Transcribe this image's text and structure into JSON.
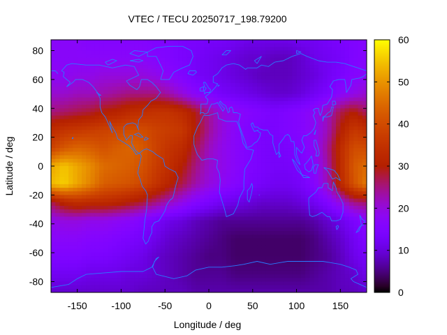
{
  "chart_data": {
    "type": "heatmap",
    "title": "VTEC / TECU 20250717_198.79200",
    "xlabel": "Longitude / deg",
    "ylabel": "Latitude / deg",
    "xlim": [
      -180,
      180
    ],
    "ylim": [
      -87.5,
      87.5
    ],
    "x_ticks": [
      -150,
      -100,
      -50,
      0,
      50,
      100,
      150
    ],
    "y_ticks": [
      -80,
      -60,
      -40,
      -20,
      0,
      20,
      40,
      60,
      80
    ],
    "colorbar": {
      "min": 0,
      "max": 60,
      "ticks": [
        0,
        10,
        20,
        30,
        40,
        50,
        60
      ],
      "colormap": "gnuplot-hot (black-purple-orange-yellow)"
    },
    "grid_lons": [
      -180,
      -165,
      -150,
      -135,
      -120,
      -105,
      -90,
      -75,
      -60,
      -45,
      -30,
      -15,
      0,
      15,
      30,
      45,
      60,
      75,
      90,
      105,
      120,
      135,
      150,
      165,
      180
    ],
    "grid_lats": [
      87.5,
      75,
      62.5,
      50,
      37.5,
      25,
      12.5,
      0,
      -12.5,
      -25,
      -37.5,
      -50,
      -62.5,
      -75,
      -87.5
    ],
    "vtec_values": [
      [
        17,
        17,
        17,
        16,
        16,
        16,
        16,
        16,
        15,
        15,
        14,
        14,
        13,
        13,
        12,
        11,
        11,
        11,
        11,
        12,
        12,
        13,
        14,
        15,
        16
      ],
      [
        17,
        17,
        17,
        17,
        17,
        17,
        17,
        17,
        16,
        15,
        14,
        13,
        12,
        11,
        10,
        9,
        9,
        8,
        8,
        9,
        11,
        12,
        13,
        15,
        16
      ],
      [
        18,
        18,
        19,
        19,
        20,
        20,
        20,
        20,
        19,
        17,
        15,
        13,
        12,
        11,
        10,
        9,
        8,
        8,
        8,
        9,
        10,
        12,
        14,
        16,
        17
      ],
      [
        21,
        21,
        22,
        22,
        23,
        24,
        25,
        25,
        25,
        23,
        20,
        17,
        15,
        13,
        12,
        11,
        10,
        9,
        9,
        10,
        12,
        14,
        17,
        19,
        21
      ],
      [
        25,
        26,
        27,
        28,
        30,
        31,
        33,
        34,
        35,
        35,
        33,
        29,
        24,
        20,
        18,
        16,
        15,
        14,
        15,
        16,
        18,
        22,
        27,
        30,
        26
      ],
      [
        33,
        35,
        36,
        37,
        38,
        39,
        40,
        40,
        38,
        37,
        36,
        30,
        24,
        20,
        17,
        15,
        14,
        14,
        15,
        16,
        18,
        22,
        30,
        36,
        34
      ],
      [
        38,
        42,
        44,
        43,
        41,
        43,
        44,
        42,
        38,
        35,
        33,
        27,
        22,
        19,
        17,
        15,
        14,
        13,
        14,
        15,
        18,
        24,
        33,
        40,
        40
      ],
      [
        52,
        55,
        52,
        49,
        45,
        44,
        43,
        41,
        37,
        34,
        30,
        25,
        21,
        19,
        17,
        15,
        14,
        13,
        13,
        14,
        17,
        23,
        33,
        42,
        45
      ],
      [
        54,
        56,
        52,
        48,
        43,
        42,
        41,
        39,
        35,
        31,
        27,
        23,
        20,
        18,
        16,
        14,
        13,
        12,
        12,
        13,
        16,
        22,
        32,
        41,
        47
      ],
      [
        27,
        32,
        34,
        33,
        33,
        32,
        30,
        28,
        25,
        22,
        19,
        16,
        14,
        12,
        11,
        10,
        9,
        9,
        9,
        10,
        12,
        15,
        20,
        25,
        26
      ],
      [
        19,
        20,
        20,
        19,
        19,
        18,
        17,
        15,
        13,
        11,
        10,
        8,
        7,
        6,
        6,
        6,
        6,
        6,
        6,
        6,
        7,
        9,
        11,
        14,
        17
      ],
      [
        17,
        17,
        17,
        16,
        16,
        15,
        14,
        13,
        11,
        9,
        8,
        7,
        6,
        5,
        4,
        4,
        4,
        4,
        4,
        4,
        5,
        7,
        9,
        12,
        15
      ],
      [
        15,
        15,
        15,
        14,
        14,
        13,
        12,
        11,
        9,
        8,
        7,
        6,
        5,
        5,
        4,
        4,
        4,
        4,
        4,
        4,
        5,
        6,
        8,
        11,
        13
      ],
      [
        12,
        12,
        12,
        11,
        11,
        11,
        10,
        10,
        9,
        8,
        7,
        6,
        6,
        6,
        5,
        5,
        5,
        5,
        5,
        5,
        6,
        7,
        8,
        9,
        11
      ],
      [
        9,
        9,
        9,
        9,
        9,
        9,
        9,
        8,
        8,
        8,
        8,
        7,
        7,
        7,
        7,
        7,
        7,
        7,
        7,
        7,
        7,
        7,
        8,
        8,
        9
      ]
    ]
  }
}
